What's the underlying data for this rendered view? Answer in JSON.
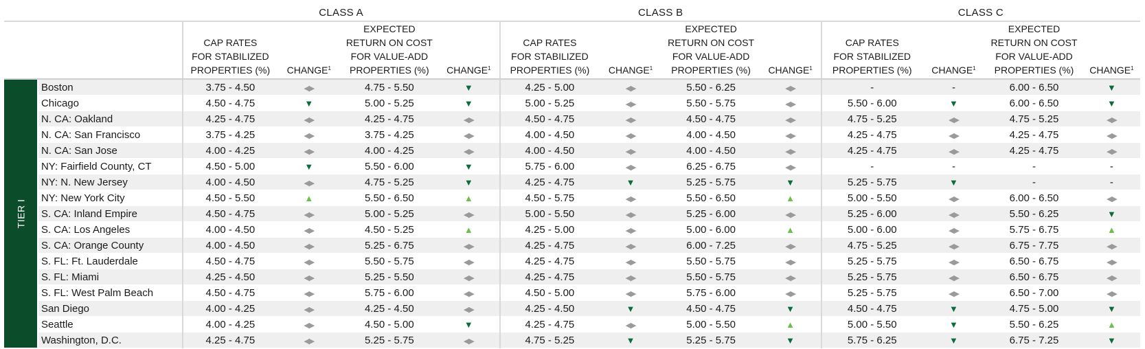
{
  "classes": [
    "CLASS A",
    "CLASS B",
    "CLASS C"
  ],
  "col_headers": {
    "cap": [
      "CAP RATES",
      "FOR STABILIZED",
      "PROPERTIES (%)"
    ],
    "change": "CHANGE",
    "change_sup": "1",
    "ret": [
      "EXPECTED",
      "RETURN ON COST",
      "FOR VALUE-ADD",
      "PROPERTIES (%)"
    ]
  },
  "tier_label": "TIER I",
  "icons": {
    "down": "▼",
    "up": "▲",
    "flat": "◀▶"
  },
  "colors": {
    "tier_bg": "#0b4d2a",
    "down": "#0b6b3a",
    "up": "#6cbf4a",
    "flat": "#9a9a9a"
  },
  "rows": [
    {
      "city": "Boston",
      "cells": [
        "3.75 - 4.50",
        "flat",
        "4.75 - 5.50",
        "down",
        "4.25 - 5.00",
        "flat",
        "5.50 - 6.25",
        "flat",
        "-",
        "-",
        "6.00 - 6.50",
        "down"
      ]
    },
    {
      "city": "Chicago",
      "cells": [
        "4.50 - 4.75",
        "down",
        "5.00 - 5.25",
        "down",
        "5.00 - 5.25",
        "flat",
        "5.50 - 5.75",
        "flat",
        "5.50 - 6.00",
        "down",
        "6.00 - 6.50",
        "down"
      ]
    },
    {
      "city": "N. CA: Oakland",
      "cells": [
        "4.25 - 4.75",
        "flat",
        "4.25 - 4.75",
        "flat",
        "4.50 - 4.75",
        "flat",
        "4.50 - 4.75",
        "flat",
        "4.75 - 5.25",
        "flat",
        "4.75 - 5.25",
        "flat"
      ]
    },
    {
      "city": "N. CA: San Francisco",
      "cells": [
        "3.75 - 4.25",
        "flat",
        "3.75 - 4.25",
        "flat",
        "4.00 - 4.50",
        "flat",
        "4.00 - 4.50",
        "flat",
        "4.25 - 4.75",
        "flat",
        "4.25 - 4.75",
        "flat"
      ]
    },
    {
      "city": "N. CA: San Jose",
      "cells": [
        "4.00 - 4.25",
        "flat",
        "4.00 - 4.25",
        "flat",
        "4.00 - 4.50",
        "flat",
        "4.00 - 4.50",
        "flat",
        "4.25 - 4.75",
        "flat",
        "4.25 - 4.75",
        "flat"
      ]
    },
    {
      "city": "NY: Fairfield County, CT",
      "cells": [
        "4.50 - 5.00",
        "down",
        "5.50 - 6.00",
        "down",
        "5.75 - 6.00",
        "flat",
        "6.25 - 6.75",
        "flat",
        "-",
        "-",
        "-",
        "-"
      ]
    },
    {
      "city": "NY: N. New Jersey",
      "cells": [
        "4.00 - 4.50",
        "flat",
        "4.75 - 5.25",
        "down",
        "4.25 - 4.75",
        "down",
        "5.25 - 5.75",
        "down",
        "5.25 - 5.75",
        "down",
        "-",
        "-"
      ]
    },
    {
      "city": "NY: New York City",
      "cells": [
        "4.50 - 5.50",
        "up",
        "5.50 - 6.50",
        "up",
        "4.50 - 5.75",
        "flat",
        "5.50 - 6.50",
        "up",
        "5.00 - 5.50",
        "flat",
        "6.00 - 6.50",
        "flat"
      ]
    },
    {
      "city": "S. CA: Inland Empire",
      "cells": [
        "4.50 - 4.75",
        "flat",
        "5.00 - 5.25",
        "flat",
        "5.00 - 5.50",
        "flat",
        "5.25 - 6.00",
        "flat",
        "5.25 - 6.00",
        "flat",
        "5.50 - 6.25",
        "down"
      ]
    },
    {
      "city": "S. CA: Los Angeles",
      "cells": [
        "4.00 - 4.50",
        "flat",
        "4.50 - 5.25",
        "up",
        "4.25 - 5.00",
        "flat",
        "5.00 - 6.00",
        "up",
        "5.00 - 6.00",
        "flat",
        "5.75 - 6.75",
        "up"
      ]
    },
    {
      "city": "S. CA: Orange County",
      "cells": [
        "4.00 - 4.50",
        "flat",
        "5.25 - 6.75",
        "flat",
        "4.25 - 4.75",
        "flat",
        "6.00 - 7.25",
        "flat",
        "4.75 - 5.25",
        "flat",
        "6.75 - 7.75",
        "flat"
      ]
    },
    {
      "city": "S. FL: Ft. Lauderdale",
      "cells": [
        "4.50 - 4.75",
        "flat",
        "5.50 - 5.75",
        "flat",
        "4.25 - 4.75",
        "flat",
        "5.50 - 5.75",
        "flat",
        "5.25 - 5.75",
        "flat",
        "6.50 - 6.75",
        "flat"
      ]
    },
    {
      "city": "S. FL: Miami",
      "cells": [
        "4.25 - 4.50",
        "flat",
        "5.25 - 5.50",
        "flat",
        "4.25 - 4.75",
        "flat",
        "5.50 - 5.75",
        "flat",
        "5.25 - 5.75",
        "flat",
        "6.50 - 6.75",
        "flat"
      ]
    },
    {
      "city": "S. FL: West Palm Beach",
      "cells": [
        "4.50 - 4.75",
        "flat",
        "5.75 - 6.00",
        "flat",
        "4.50 - 5.00",
        "flat",
        "5.75 - 6.00",
        "flat",
        "5.25 - 5.75",
        "flat",
        "6.50 - 7.00",
        "flat"
      ]
    },
    {
      "city": "San Diego",
      "cells": [
        "4.00 - 4.25",
        "flat",
        "4.25 - 4.50",
        "flat",
        "4.25 - 4.50",
        "down",
        "4.50 - 4.75",
        "down",
        "4.50 - 4.75",
        "down",
        "4.75 - 5.00",
        "down"
      ]
    },
    {
      "city": "Seattle",
      "cells": [
        "4.00 - 4.25",
        "flat",
        "4.50 - 5.00",
        "down",
        "4.25 - 4.75",
        "flat",
        "5.00 - 5.50",
        "up",
        "5.00 - 5.50",
        "down",
        "5.50 - 6.25",
        "up"
      ]
    },
    {
      "city": "Washington, D.C.",
      "cells": [
        "4.25 - 4.75",
        "flat",
        "5.25 - 5.75",
        "flat",
        "4.75 - 5.25",
        "down",
        "5.25 - 5.75",
        "down",
        "5.75 - 6.25",
        "down",
        "6.75 - 7.25",
        "down"
      ]
    }
  ]
}
